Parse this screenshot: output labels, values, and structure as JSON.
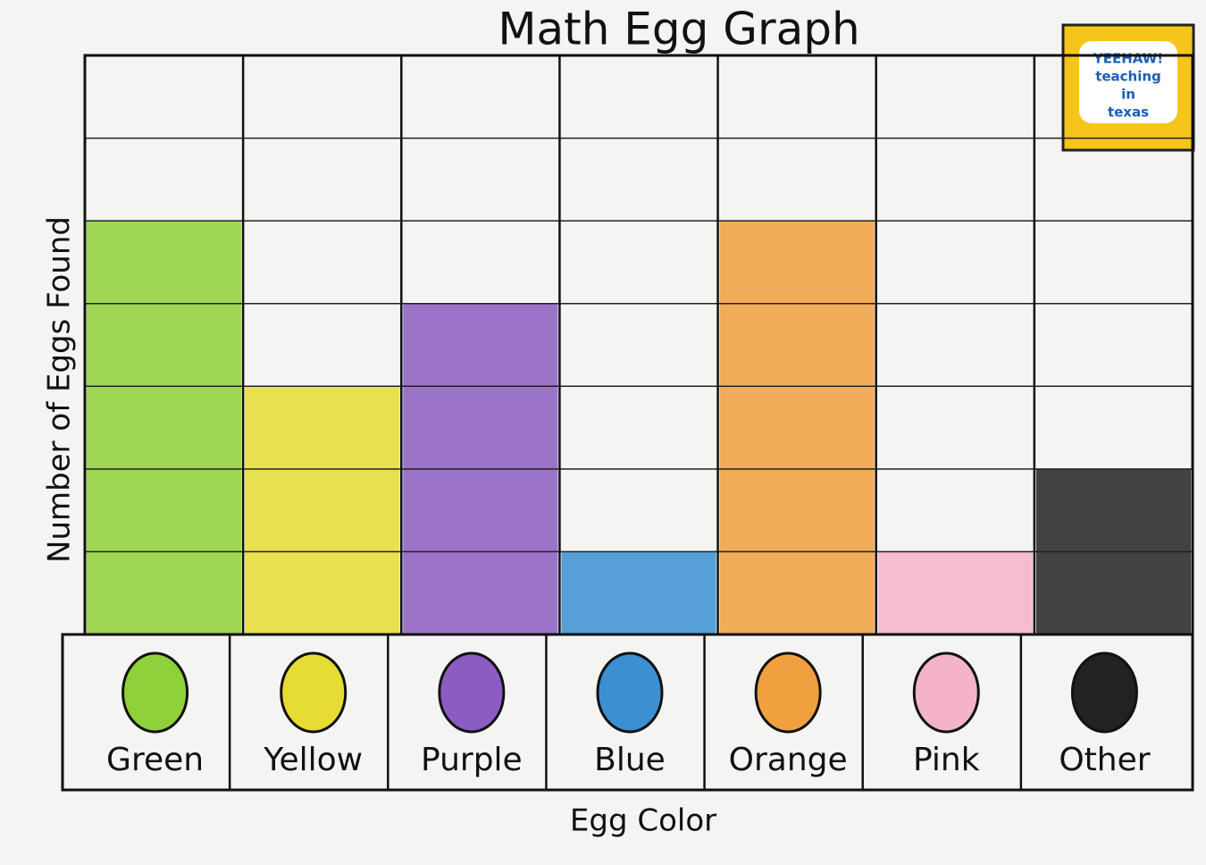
{
  "chart_data": {
    "type": "bar",
    "title": "Math Egg Graph",
    "x_label": "Egg Color",
    "y_label": "Number of Eggs Found",
    "categories": [
      "Green",
      "Yellow",
      "Purple",
      "Blue",
      "Orange",
      "Pink",
      "Other"
    ],
    "values": [
      5,
      3,
      4,
      1,
      5,
      1,
      2
    ],
    "colors": [
      "#8fd13a",
      "#e6dc34",
      "#8b5cc2",
      "#3b8fd2",
      "#f0a03e",
      "#f5b3c8",
      "#222222"
    ],
    "ylim": [
      0,
      7
    ]
  },
  "logo": [
    "YEEHAW!",
    "teaching",
    "in",
    "texas"
  ]
}
